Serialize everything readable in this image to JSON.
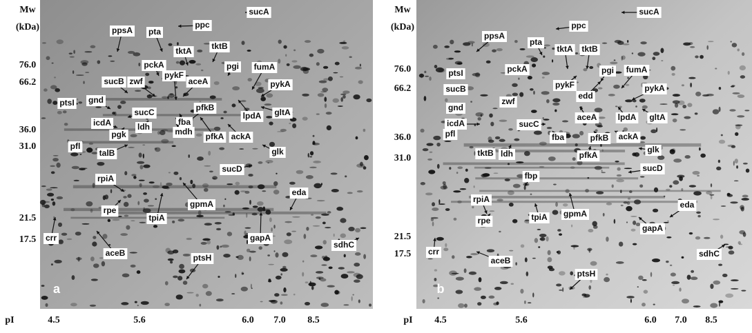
{
  "panels": [
    {
      "letter": "a",
      "mw_title": [
        "Mw",
        "(kDa)"
      ],
      "mw_ticks": [
        "76.0",
        "66.2",
        "36.0",
        "31.0",
        "21.5",
        "17.5"
      ],
      "pi_title": "pI",
      "pi_ticks": [
        "4.5",
        "5.6",
        "6.0",
        "7.0",
        "8.5"
      ],
      "proteins": [
        "sucA",
        "ppsA",
        "ppc",
        "pta",
        "tktA",
        "tktB",
        "pckA",
        "pykF",
        "pgi",
        "fumA",
        "aceA",
        "sucB",
        "zwf",
        "pykA",
        "ptsI",
        "gnd",
        "pfkB",
        "lpdA",
        "gltA",
        "sucC",
        "icdA",
        "fba",
        "pgk",
        "ldh",
        "mdh",
        "pfkA",
        "ackA",
        "pfl",
        "talB",
        "glk",
        "sucD",
        "rpiA",
        "eda",
        "rpe",
        "gpmA",
        "tpiA",
        "crr",
        "gapA",
        "aceB",
        "sdhC",
        "ptsH"
      ]
    },
    {
      "letter": "b",
      "mw_title": [
        "Mw",
        "(kDa)"
      ],
      "mw_ticks": [
        "76.0",
        "66.2",
        "36.0",
        "31.0",
        "21.5",
        "17.5"
      ],
      "pi_title": "pI",
      "pi_ticks": [
        "4.5",
        "5.6",
        "6.0",
        "7.0",
        "8.5"
      ],
      "proteins": [
        "sucA",
        "ppc",
        "ppsA",
        "pta",
        "tktA",
        "tktB",
        "ptsI",
        "pckA",
        "pgi",
        "fumA",
        "pykF",
        "edd",
        "pykA",
        "sucB",
        "zwf",
        "gnd",
        "aceA",
        "lpdA",
        "gltA",
        "icdA",
        "sucC",
        "pfl",
        "fba",
        "pfkB",
        "ackA",
        "tktB",
        "ldh",
        "pfkA",
        "glk",
        "sucD",
        "fbp",
        "rpiA",
        "tpiA",
        "gpmA",
        "eda",
        "rpe",
        "gapA",
        "crr",
        "aceB",
        "sdhC",
        "ptsH"
      ]
    }
  ]
}
